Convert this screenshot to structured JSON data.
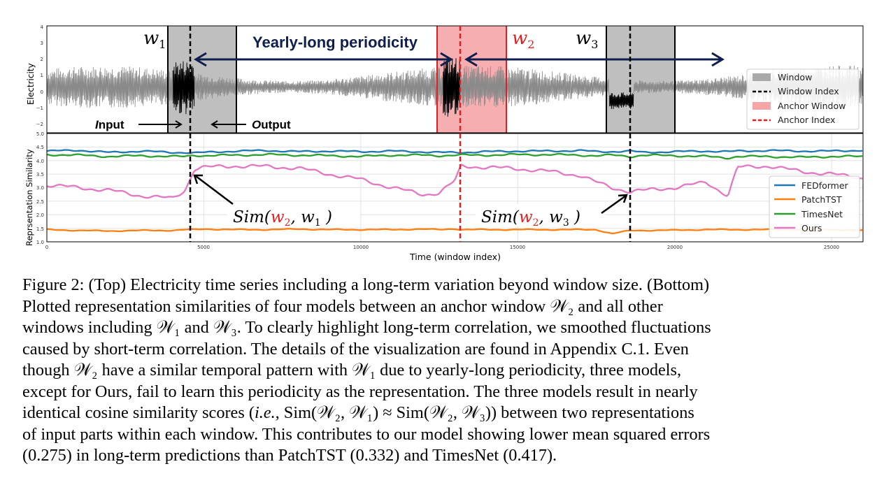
{
  "figure": {
    "top_panel": {
      "ylabel": "Electricity",
      "yticks": [
        "4",
        "3",
        "2",
        "1",
        "0",
        "−1",
        "−2"
      ],
      "window_labels": {
        "w1": "w",
        "w1_sub": "1",
        "w2": "w",
        "w2_sub": "2",
        "w3": "w",
        "w3_sub": "3"
      },
      "periodicity_label": "Yearly-long periodicity",
      "input_label_first": "I",
      "input_label_rest": "nput",
      "output_label_first": "O",
      "output_label_rest": "utput",
      "legend": [
        "Window",
        "Window Index",
        "Anchor Window",
        "Anchor Index"
      ]
    },
    "bottom_panel": {
      "ylabel": "Reprsentation Similarity",
      "xlabel": "Time (window index)",
      "yticks": [
        "5.0",
        "4.5",
        "4.0",
        "3.5",
        "3.0",
        "2.5",
        "2.0",
        "1.5",
        "1.0"
      ],
      "xticks": [
        "0",
        "5000",
        "10000",
        "15000",
        "20000",
        "25000"
      ],
      "annot1": {
        "pre": "Sim(",
        "w2": "w",
        "w2_sub": "2",
        "mid": ", w",
        "w1_sub": "1",
        "post": " )"
      },
      "annot2": {
        "pre": "Sim(",
        "w2": "w",
        "w2_sub": "2",
        "mid": ", w",
        "w3_sub": "3",
        "post": " )"
      },
      "legend": [
        "FEDformer",
        "PatchTST",
        "TimesNet",
        "Ours"
      ]
    },
    "colors": {
      "fedformer": "#1f77b4",
      "patchtst": "#ff7f0e",
      "timesnet": "#2ca02c",
      "ours": "#e377c2",
      "anchor": "#e02020",
      "arrow": "#0f1f4d",
      "window_fill": "#a9a9a9",
      "anchor_fill": "#f5a5a8"
    }
  },
  "chart_data": {
    "type": "line",
    "x_range": [
      0,
      26000
    ],
    "ylim": [
      1.0,
      5.0
    ],
    "windows": {
      "w1": [
        3850,
        6000
      ],
      "w2": [
        12400,
        14600
      ],
      "w3": [
        17800,
        20000
      ]
    },
    "window_index": {
      "w1": 4550,
      "w2": 13100,
      "w3": 18600
    },
    "x": [
      0,
      1000,
      2000,
      3000,
      4000,
      4400,
      4700,
      5000,
      6000,
      7000,
      8000,
      9000,
      10000,
      11000,
      12000,
      12500,
      13000,
      13200,
      14000,
      15000,
      16000,
      17000,
      17500,
      18000,
      18600,
      19000,
      20000,
      21000,
      21700,
      22000,
      23000,
      24000,
      25000,
      26000
    ],
    "series": [
      {
        "name": "FEDformer",
        "values": [
          4.35,
          4.38,
          4.3,
          4.35,
          4.3,
          4.3,
          4.28,
          4.3,
          4.35,
          4.37,
          4.33,
          4.35,
          4.33,
          4.35,
          4.32,
          4.3,
          4.3,
          4.3,
          4.33,
          4.35,
          4.35,
          4.37,
          4.33,
          4.33,
          4.35,
          4.3,
          4.33,
          4.35,
          4.33,
          4.35,
          4.37,
          4.35,
          4.35,
          4.38
        ]
      },
      {
        "name": "PatchTST",
        "values": [
          1.45,
          1.42,
          1.4,
          1.42,
          1.42,
          1.45,
          1.45,
          1.47,
          1.45,
          1.45,
          1.47,
          1.45,
          1.45,
          1.45,
          1.47,
          1.45,
          1.48,
          1.45,
          1.45,
          1.45,
          1.45,
          1.45,
          1.45,
          1.3,
          1.42,
          1.42,
          1.43,
          1.45,
          1.45,
          1.45,
          1.45,
          1.45,
          1.45,
          1.42
        ]
      },
      {
        "name": "TimesNet",
        "values": [
          4.22,
          4.2,
          4.15,
          4.18,
          4.15,
          4.15,
          4.2,
          4.18,
          4.2,
          4.22,
          4.2,
          4.18,
          4.15,
          4.2,
          4.2,
          4.18,
          4.2,
          4.2,
          4.2,
          4.22,
          4.22,
          4.2,
          4.18,
          4.2,
          4.15,
          4.2,
          4.18,
          4.15,
          4.1,
          4.15,
          4.15,
          4.12,
          4.15,
          4.15
        ]
      },
      {
        "name": "Ours",
        "values": [
          3.1,
          3.0,
          2.9,
          2.7,
          2.6,
          2.9,
          3.7,
          3.75,
          3.8,
          3.78,
          3.72,
          3.5,
          3.3,
          3.0,
          2.75,
          2.8,
          3.25,
          3.8,
          3.75,
          3.7,
          3.6,
          3.45,
          3.2,
          3.0,
          2.85,
          2.9,
          3.0,
          3.2,
          2.7,
          3.75,
          3.8,
          3.6,
          3.5,
          3.35
        ]
      }
    ]
  },
  "caption": {
    "l1": "Figure 2: (Top) Electricity time series including a long-term variation beyond window size. (Bottom)",
    "l2": "Plotted representation similarities of four models between an anchor window 𝒲₂ and all other",
    "l3": "windows including 𝒲₁ and 𝒲₃. To clearly highlight long-term correlation, we smoothed fluctuations",
    "l4": "caused by short-term correlation. The details of the visualization are found in Appendix C.1. Even",
    "l5": "though 𝒲₂ have a similar temporal pattern with 𝒲₁ due to yearly-long periodicity, three models,",
    "l6": "except for Ours, fail to learn this periodicity as the representation. The three models result in nearly",
    "l7a": "identical cosine similarity scores (",
    "l7b": "i.e.,",
    "l7c": " Sim(𝒲₂, 𝒲₁) ≈ Sim(𝒲₂, 𝒲₃)) between two representations",
    "l8": "of input parts within each window. This contributes to our model showing lower mean squared errors",
    "l9": "(0.275) in long-term predictions than PatchTST (0.332) and TimesNet (0.417)."
  }
}
